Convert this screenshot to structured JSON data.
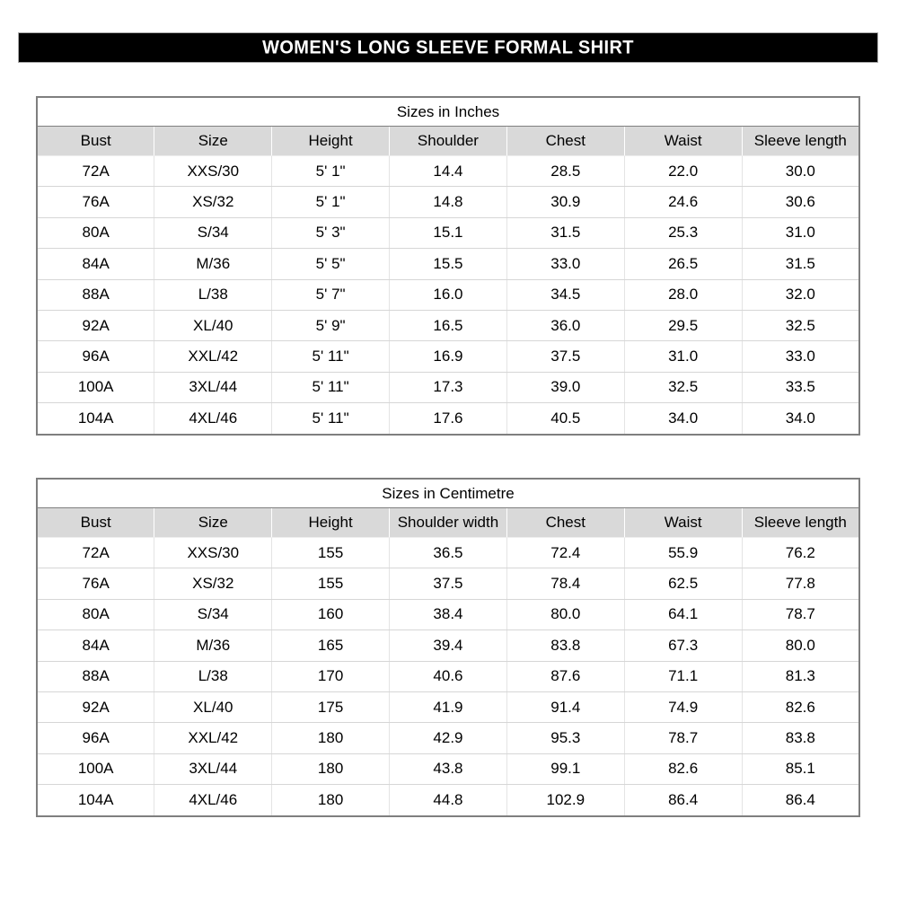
{
  "page_title": "WOMEN'S LONG SLEEVE FORMAL SHIRT",
  "colors": {
    "title_bar_bg": "#000000",
    "title_bar_text": "#ffffff",
    "header_row_bg": "#d9d9d9",
    "outer_border": "#7f7f7f",
    "grid_line": "#d9d9d9"
  },
  "tables": [
    {
      "title": "Sizes in Inches",
      "columns": [
        "Bust",
        "Size",
        "Height",
        "Shoulder",
        "Chest",
        "Waist",
        "Sleeve length"
      ],
      "rows": [
        [
          "72A",
          "XXS/30",
          "5' 1\"",
          "14.4",
          "28.5",
          "22.0",
          "30.0"
        ],
        [
          "76A",
          "XS/32",
          "5' 1\"",
          "14.8",
          "30.9",
          "24.6",
          "30.6"
        ],
        [
          "80A",
          "S/34",
          "5' 3\"",
          "15.1",
          "31.5",
          "25.3",
          "31.0"
        ],
        [
          "84A",
          "M/36",
          "5' 5\"",
          "15.5",
          "33.0",
          "26.5",
          "31.5"
        ],
        [
          "88A",
          "L/38",
          "5' 7\"",
          "16.0",
          "34.5",
          "28.0",
          "32.0"
        ],
        [
          "92A",
          "XL/40",
          "5' 9\"",
          "16.5",
          "36.0",
          "29.5",
          "32.5"
        ],
        [
          "96A",
          "XXL/42",
          "5' 11\"",
          "16.9",
          "37.5",
          "31.0",
          "33.0"
        ],
        [
          "100A",
          "3XL/44",
          "5' 11\"",
          "17.3",
          "39.0",
          "32.5",
          "33.5"
        ],
        [
          "104A",
          "4XL/46",
          "5' 11\"",
          "17.6",
          "40.5",
          "34.0",
          "34.0"
        ]
      ]
    },
    {
      "title": "Sizes in Centimetre",
      "columns": [
        "Bust",
        "Size",
        "Height",
        "Shoulder width",
        "Chest",
        "Waist",
        "Sleeve length"
      ],
      "rows": [
        [
          "72A",
          "XXS/30",
          "155",
          "36.5",
          "72.4",
          "55.9",
          "76.2"
        ],
        [
          "76A",
          "XS/32",
          "155",
          "37.5",
          "78.4",
          "62.5",
          "77.8"
        ],
        [
          "80A",
          "S/34",
          "160",
          "38.4",
          "80.0",
          "64.1",
          "78.7"
        ],
        [
          "84A",
          "M/36",
          "165",
          "39.4",
          "83.8",
          "67.3",
          "80.0"
        ],
        [
          "88A",
          "L/38",
          "170",
          "40.6",
          "87.6",
          "71.1",
          "81.3"
        ],
        [
          "92A",
          "XL/40",
          "175",
          "41.9",
          "91.4",
          "74.9",
          "82.6"
        ],
        [
          "96A",
          "XXL/42",
          "180",
          "42.9",
          "95.3",
          "78.7",
          "83.8"
        ],
        [
          "100A",
          "3XL/44",
          "180",
          "43.8",
          "99.1",
          "82.6",
          "85.1"
        ],
        [
          "104A",
          "4XL/46",
          "180",
          "44.8",
          "102.9",
          "86.4",
          "86.4"
        ]
      ]
    }
  ]
}
